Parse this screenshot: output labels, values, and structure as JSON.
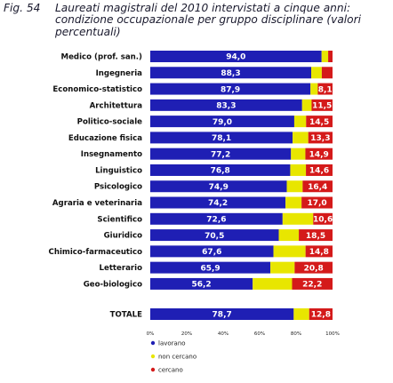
{
  "header": {
    "fig_label": "Fig. 54",
    "title": "Laureati magistrali del 2010 intervistati a cinque anni: condizione occupazionale per gruppo disciplinare (valori percentuali)"
  },
  "colors": {
    "lavorano": "#1f1fb4",
    "non_cercano": "#e8e600",
    "cercano": "#d41a1a"
  },
  "chart_data": {
    "type": "bar",
    "stacked": true,
    "orientation": "horizontal",
    "categories": [
      "Medico (prof. san.)",
      "Ingegneria",
      "Economico-statistico",
      "Architettura",
      "Politico-sociale",
      "Educazione fisica",
      "Insegnamento",
      "Linguistico",
      "Psicologico",
      "Agraria e veterinaria",
      "Scientifico",
      "Giuridico",
      "Chimico-farmaceutico",
      "Letterario",
      "Geo-biologico",
      "TOTALE"
    ],
    "series": [
      {
        "name": "lavorano",
        "values": [
          94.0,
          88.3,
          87.9,
          83.3,
          79.0,
          78.1,
          77.2,
          76.8,
          74.9,
          74.2,
          72.6,
          70.5,
          67.6,
          65.9,
          56.2,
          78.7
        ],
        "labels": [
          "94,0",
          "88,3",
          "87,9",
          "83,3",
          "79,0",
          "78,1",
          "77,2",
          "76,8",
          "74,9",
          "74,2",
          "72,6",
          "70,5",
          "67,6",
          "65,9",
          "56,2",
          "78,7"
        ]
      },
      {
        "name": "non cercano",
        "values": [
          3.6,
          5.8,
          4.0,
          5.2,
          6.5,
          8.6,
          7.9,
          8.6,
          8.7,
          8.8,
          16.8,
          11.0,
          17.6,
          13.3,
          21.6,
          8.5
        ],
        "labels": [
          "",
          "",
          "",
          "",
          "",
          "",
          "",
          "",
          "",
          "",
          "",
          "",
          "",
          "",
          "",
          ""
        ]
      },
      {
        "name": "cercano",
        "values": [
          2.4,
          5.9,
          8.1,
          11.5,
          14.5,
          13.3,
          14.9,
          14.6,
          16.4,
          17.0,
          10.6,
          18.5,
          14.8,
          20.8,
          22.2,
          12.8
        ],
        "labels": [
          "",
          "",
          "8,1",
          "11,5",
          "14,5",
          "13,3",
          "14,9",
          "14,6",
          "16,4",
          "17,0",
          "10,6",
          "18,5",
          "14,8",
          "20,8",
          "22,2",
          "12,8"
        ]
      }
    ],
    "xticks": [
      "0%",
      "20%",
      "40%",
      "60%",
      "80%",
      "100%"
    ],
    "xlim": [
      0,
      100
    ],
    "legend": [
      "lavorano",
      "non cercano",
      "cercano"
    ],
    "legend_position": "bottom-left"
  }
}
